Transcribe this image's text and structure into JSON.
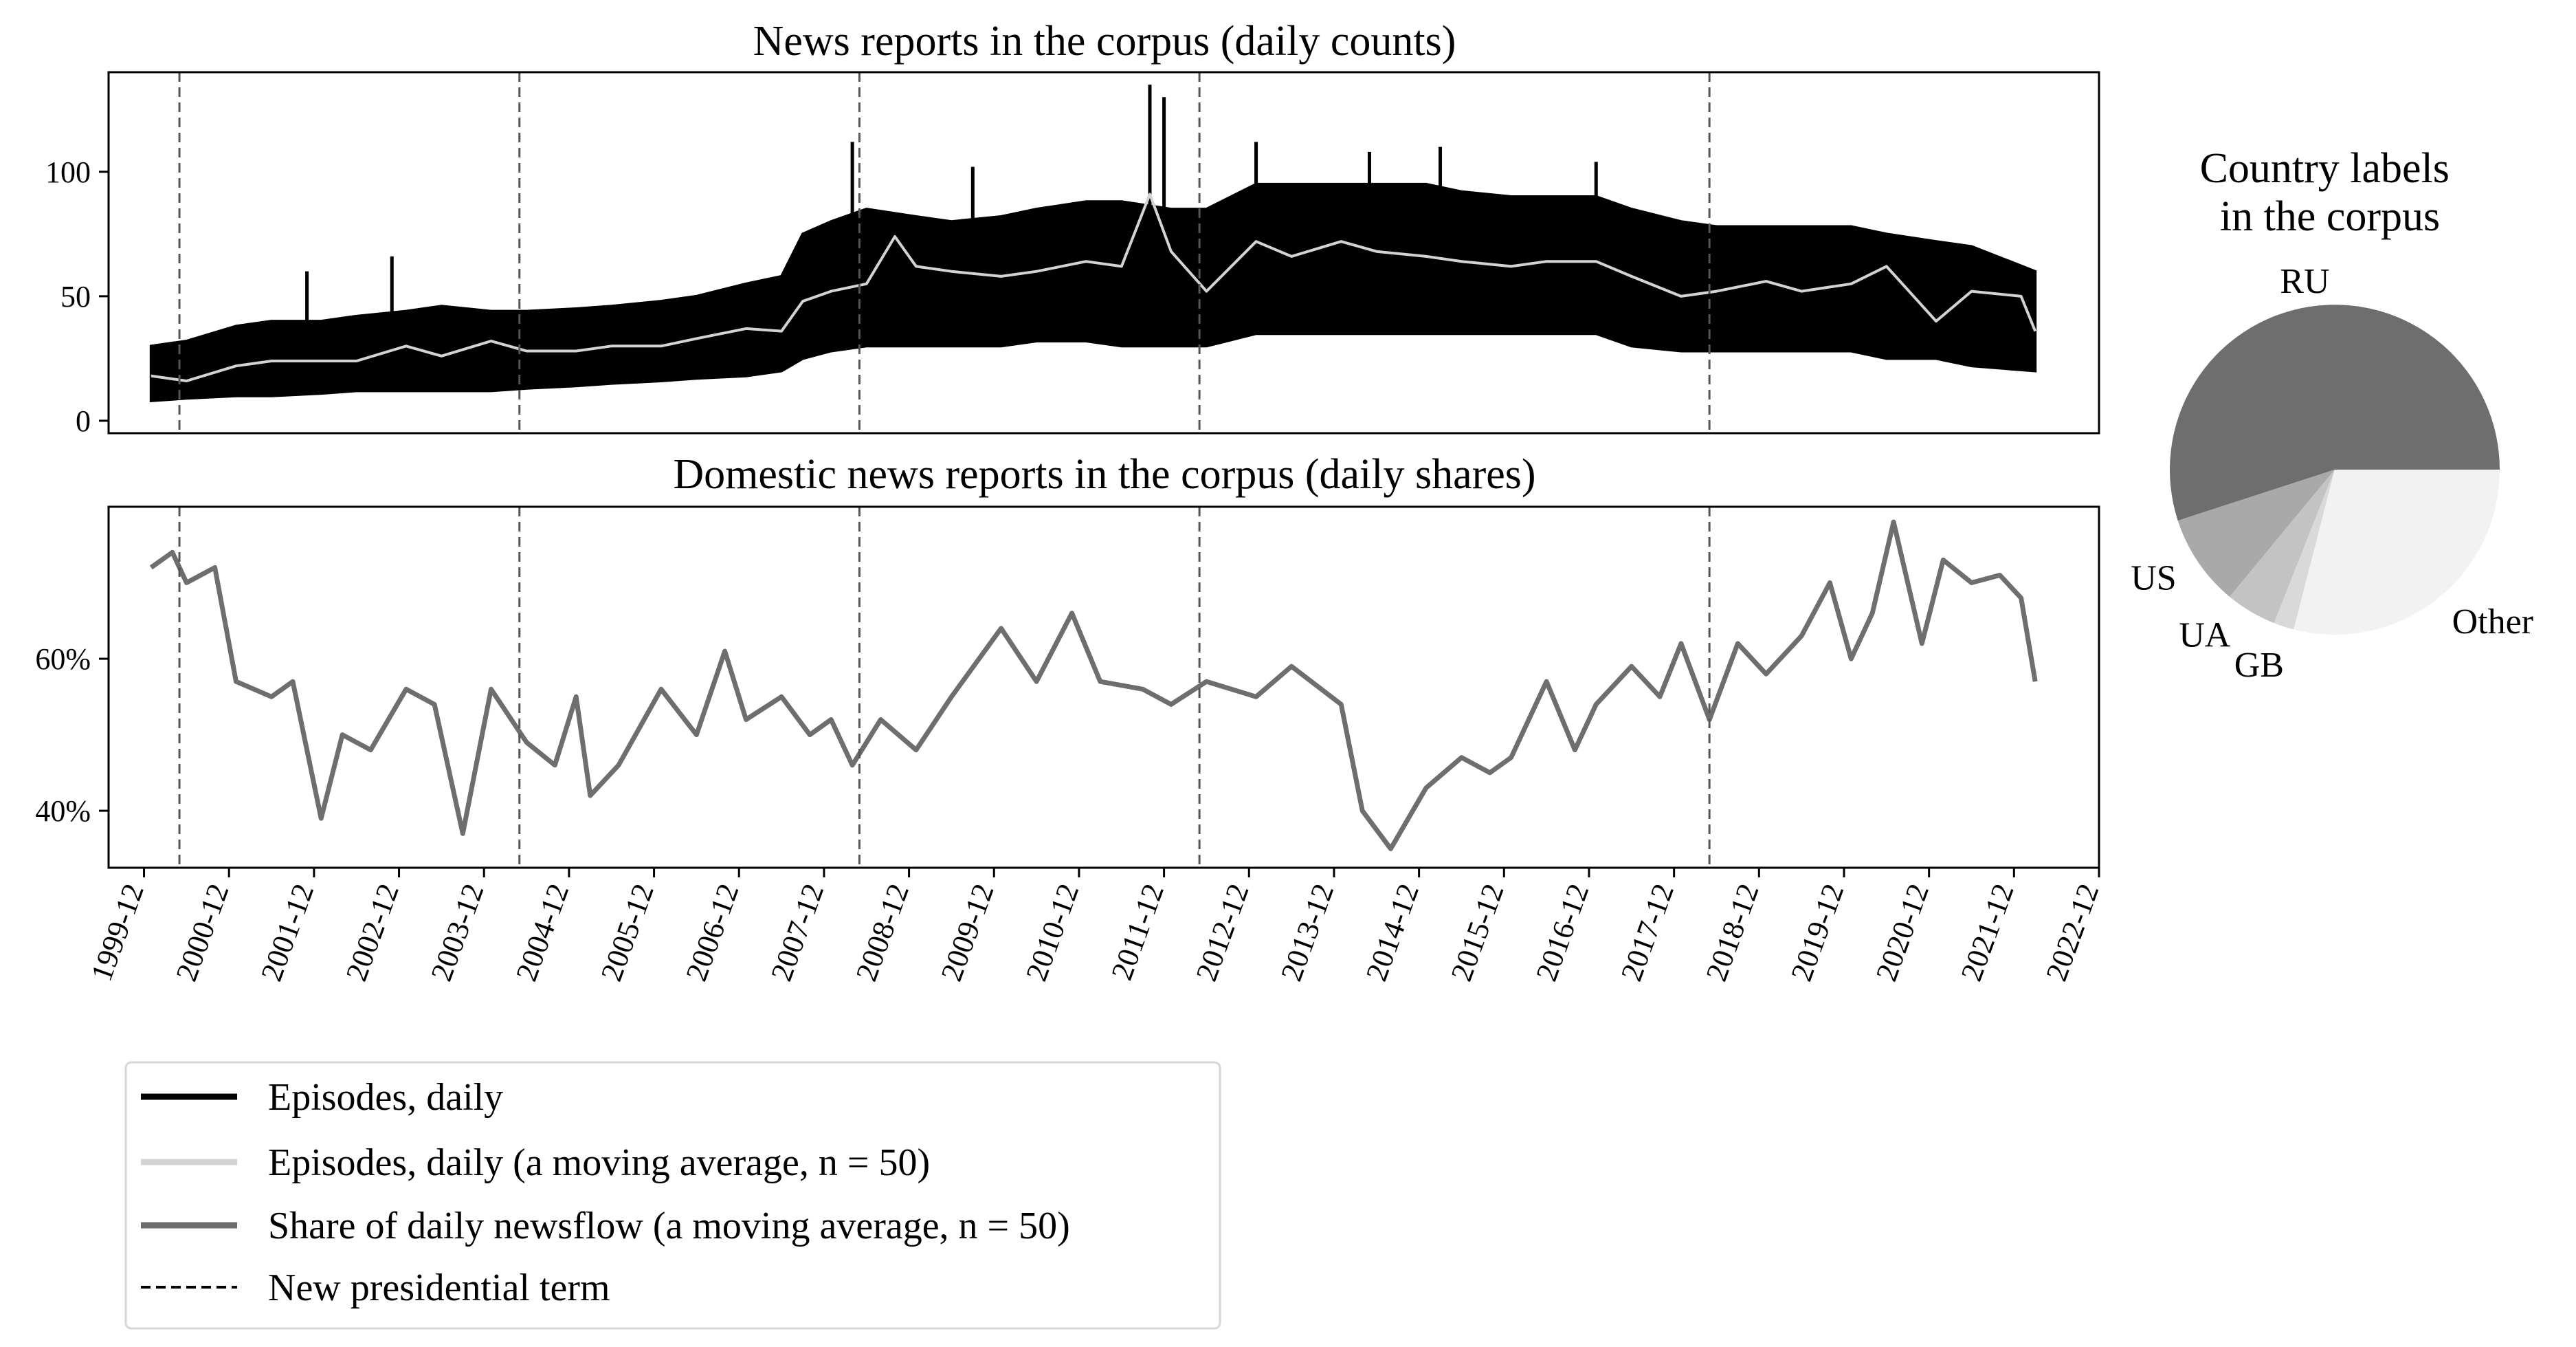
{
  "chart_data": [
    {
      "type": "line",
      "title": "News reports in the corpus (daily counts)",
      "xlabel": "",
      "ylabel": "",
      "x_range": [
        "1999-07",
        "2022-12"
      ],
      "ylim": [
        -5,
        140
      ],
      "yticks": [
        {
          "value": 0,
          "label": "0"
        },
        {
          "value": 50,
          "label": "50"
        },
        {
          "value": 100,
          "label": "100"
        }
      ],
      "series": [
        {
          "name": "Episodes, daily",
          "color": "#000000",
          "band": [
            {
              "x": "2000-01",
              "low": 8,
              "high": 30
            },
            {
              "x": "2000-06",
              "low": 9,
              "high": 32
            },
            {
              "x": "2001-01",
              "low": 10,
              "high": 38
            },
            {
              "x": "2001-06",
              "low": 10,
              "high": 40
            },
            {
              "x": "2002-01",
              "low": 11,
              "high": 40
            },
            {
              "x": "2002-06",
              "low": 12,
              "high": 42
            },
            {
              "x": "2003-01",
              "low": 12,
              "high": 44
            },
            {
              "x": "2003-06",
              "low": 12,
              "high": 46
            },
            {
              "x": "2004-01",
              "low": 12,
              "high": 44
            },
            {
              "x": "2004-06",
              "low": 13,
              "high": 44
            },
            {
              "x": "2005-01",
              "low": 14,
              "high": 45
            },
            {
              "x": "2005-06",
              "low": 15,
              "high": 46
            },
            {
              "x": "2006-01",
              "low": 16,
              "high": 48
            },
            {
              "x": "2006-06",
              "low": 17,
              "high": 50
            },
            {
              "x": "2007-01",
              "low": 18,
              "high": 55
            },
            {
              "x": "2007-06",
              "low": 20,
              "high": 58
            },
            {
              "x": "2007-09",
              "low": 25,
              "high": 75
            },
            {
              "x": "2008-01",
              "low": 28,
              "high": 80
            },
            {
              "x": "2008-06",
              "low": 30,
              "high": 85
            },
            {
              "x": "2009-01",
              "low": 30,
              "high": 82
            },
            {
              "x": "2009-06",
              "low": 30,
              "high": 80
            },
            {
              "x": "2010-01",
              "low": 30,
              "high": 82
            },
            {
              "x": "2010-06",
              "low": 32,
              "high": 85
            },
            {
              "x": "2011-01",
              "low": 32,
              "high": 88
            },
            {
              "x": "2011-06",
              "low": 30,
              "high": 88
            },
            {
              "x": "2012-01",
              "low": 30,
              "high": 85
            },
            {
              "x": "2012-06",
              "low": 30,
              "high": 85
            },
            {
              "x": "2013-01",
              "low": 35,
              "high": 95
            },
            {
              "x": "2013-06",
              "low": 35,
              "high": 95
            },
            {
              "x": "2014-01",
              "low": 35,
              "high": 95
            },
            {
              "x": "2014-06",
              "low": 35,
              "high": 95
            },
            {
              "x": "2015-01",
              "low": 35,
              "high": 95
            },
            {
              "x": "2015-06",
              "low": 35,
              "high": 92
            },
            {
              "x": "2016-01",
              "low": 35,
              "high": 90
            },
            {
              "x": "2016-06",
              "low": 35,
              "high": 90
            },
            {
              "x": "2017-01",
              "low": 35,
              "high": 90
            },
            {
              "x": "2017-06",
              "low": 30,
              "high": 85
            },
            {
              "x": "2018-01",
              "low": 28,
              "high": 80
            },
            {
              "x": "2018-06",
              "low": 28,
              "high": 78
            },
            {
              "x": "2019-01",
              "low": 28,
              "high": 78
            },
            {
              "x": "2019-06",
              "low": 28,
              "high": 78
            },
            {
              "x": "2020-01",
              "low": 28,
              "high": 78
            },
            {
              "x": "2020-06",
              "low": 25,
              "high": 75
            },
            {
              "x": "2021-01",
              "low": 25,
              "high": 72
            },
            {
              "x": "2021-06",
              "low": 22,
              "high": 70
            },
            {
              "x": "2022-03",
              "low": 20,
              "high": 60
            }
          ],
          "spikes": [
            {
              "x": "2001-11",
              "value": 60
            },
            {
              "x": "2002-11",
              "value": 66
            },
            {
              "x": "2008-04",
              "value": 112
            },
            {
              "x": "2009-09",
              "value": 102
            },
            {
              "x": "2011-10",
              "value": 135
            },
            {
              "x": "2011-12",
              "value": 130
            },
            {
              "x": "2013-01",
              "value": 112
            },
            {
              "x": "2014-05",
              "value": 108
            },
            {
              "x": "2015-03",
              "value": 110
            },
            {
              "x": "2017-01",
              "value": 104
            }
          ]
        },
        {
          "name": "Episodes, daily (a moving average, n = 50)",
          "color": "#d3d3d3",
          "points": [
            {
              "x": "2000-01",
              "y": 18
            },
            {
              "x": "2000-06",
              "y": 16
            },
            {
              "x": "2001-01",
              "y": 22
            },
            {
              "x": "2001-06",
              "y": 24
            },
            {
              "x": "2002-01",
              "y": 24
            },
            {
              "x": "2002-06",
              "y": 24
            },
            {
              "x": "2003-01",
              "y": 30
            },
            {
              "x": "2003-06",
              "y": 26
            },
            {
              "x": "2004-01",
              "y": 32
            },
            {
              "x": "2004-06",
              "y": 28
            },
            {
              "x": "2005-01",
              "y": 28
            },
            {
              "x": "2005-06",
              "y": 30
            },
            {
              "x": "2006-01",
              "y": 30
            },
            {
              "x": "2006-06",
              "y": 33
            },
            {
              "x": "2007-01",
              "y": 37
            },
            {
              "x": "2007-06",
              "y": 36
            },
            {
              "x": "2007-09",
              "y": 48
            },
            {
              "x": "2008-01",
              "y": 52
            },
            {
              "x": "2008-06",
              "y": 55
            },
            {
              "x": "2008-10",
              "y": 74
            },
            {
              "x": "2009-01",
              "y": 62
            },
            {
              "x": "2009-06",
              "y": 60
            },
            {
              "x": "2010-01",
              "y": 58
            },
            {
              "x": "2010-06",
              "y": 60
            },
            {
              "x": "2011-01",
              "y": 64
            },
            {
              "x": "2011-06",
              "y": 62
            },
            {
              "x": "2011-10",
              "y": 91
            },
            {
              "x": "2012-01",
              "y": 68
            },
            {
              "x": "2012-06",
              "y": 52
            },
            {
              "x": "2013-01",
              "y": 72
            },
            {
              "x": "2013-06",
              "y": 66
            },
            {
              "x": "2014-01",
              "y": 72
            },
            {
              "x": "2014-06",
              "y": 68
            },
            {
              "x": "2015-01",
              "y": 66
            },
            {
              "x": "2015-06",
              "y": 64
            },
            {
              "x": "2016-01",
              "y": 62
            },
            {
              "x": "2016-06",
              "y": 64
            },
            {
              "x": "2017-01",
              "y": 64
            },
            {
              "x": "2017-06",
              "y": 58
            },
            {
              "x": "2018-01",
              "y": 50
            },
            {
              "x": "2018-06",
              "y": 52
            },
            {
              "x": "2019-01",
              "y": 56
            },
            {
              "x": "2019-06",
              "y": 52
            },
            {
              "x": "2020-01",
              "y": 55
            },
            {
              "x": "2020-06",
              "y": 62
            },
            {
              "x": "2021-01",
              "y": 40
            },
            {
              "x": "2021-06",
              "y": 52
            },
            {
              "x": "2022-01",
              "y": 50
            },
            {
              "x": "2022-03",
              "y": 36
            }
          ]
        }
      ],
      "vlines": [
        "2000-05",
        "2004-05",
        "2008-05",
        "2012-05",
        "2018-05"
      ]
    },
    {
      "type": "line",
      "title": "Domestic news reports in the corpus (daily shares)",
      "xlabel": "",
      "ylabel": "",
      "x_range": [
        "1999-07",
        "2022-12"
      ],
      "ylim": [
        32.5,
        80
      ],
      "yticks": [
        {
          "value": 40,
          "label": "40%"
        },
        {
          "value": 60,
          "label": "60%"
        }
      ],
      "xticks": [
        "1999-12",
        "2000-12",
        "2001-12",
        "2002-12",
        "2003-12",
        "2004-12",
        "2005-12",
        "2006-12",
        "2007-12",
        "2008-12",
        "2009-12",
        "2010-12",
        "2011-12",
        "2012-12",
        "2013-12",
        "2014-12",
        "2015-12",
        "2016-12",
        "2017-12",
        "2018-12",
        "2019-12",
        "2020-12",
        "2021-12",
        "2022-12"
      ],
      "series": [
        {
          "name": "Share of daily newsflow (a moving average, n = 50)",
          "color": "#6e6e6e",
          "points": [
            {
              "x": "2000-01",
              "y": 72
            },
            {
              "x": "2000-04",
              "y": 74
            },
            {
              "x": "2000-06",
              "y": 70
            },
            {
              "x": "2000-10",
              "y": 72
            },
            {
              "x": "2001-01",
              "y": 57
            },
            {
              "x": "2001-06",
              "y": 55
            },
            {
              "x": "2001-09",
              "y": 57
            },
            {
              "x": "2002-01",
              "y": 39
            },
            {
              "x": "2002-04",
              "y": 50
            },
            {
              "x": "2002-08",
              "y": 48
            },
            {
              "x": "2003-01",
              "y": 56
            },
            {
              "x": "2003-05",
              "y": 54
            },
            {
              "x": "2003-09",
              "y": 37
            },
            {
              "x": "2004-01",
              "y": 56
            },
            {
              "x": "2004-06",
              "y": 49
            },
            {
              "x": "2004-10",
              "y": 46
            },
            {
              "x": "2005-01",
              "y": 55
            },
            {
              "x": "2005-03",
              "y": 42
            },
            {
              "x": "2005-07",
              "y": 46
            },
            {
              "x": "2006-01",
              "y": 56
            },
            {
              "x": "2006-06",
              "y": 50
            },
            {
              "x": "2006-10",
              "y": 61
            },
            {
              "x": "2007-01",
              "y": 52
            },
            {
              "x": "2007-06",
              "y": 55
            },
            {
              "x": "2007-10",
              "y": 50
            },
            {
              "x": "2008-01",
              "y": 52
            },
            {
              "x": "2008-04",
              "y": 46
            },
            {
              "x": "2008-08",
              "y": 52
            },
            {
              "x": "2009-01",
              "y": 48
            },
            {
              "x": "2009-06",
              "y": 55
            },
            {
              "x": "2010-01",
              "y": 64
            },
            {
              "x": "2010-06",
              "y": 57
            },
            {
              "x": "2010-11",
              "y": 66
            },
            {
              "x": "2011-03",
              "y": 57
            },
            {
              "x": "2011-09",
              "y": 56
            },
            {
              "x": "2012-01",
              "y": 54
            },
            {
              "x": "2012-06",
              "y": 57
            },
            {
              "x": "2013-01",
              "y": 55
            },
            {
              "x": "2013-06",
              "y": 59
            },
            {
              "x": "2014-01",
              "y": 54
            },
            {
              "x": "2014-04",
              "y": 40
            },
            {
              "x": "2014-08",
              "y": 35
            },
            {
              "x": "2015-01",
              "y": 43
            },
            {
              "x": "2015-06",
              "y": 47
            },
            {
              "x": "2015-10",
              "y": 45
            },
            {
              "x": "2016-01",
              "y": 47
            },
            {
              "x": "2016-06",
              "y": 57
            },
            {
              "x": "2016-10",
              "y": 48
            },
            {
              "x": "2017-01",
              "y": 54
            },
            {
              "x": "2017-06",
              "y": 59
            },
            {
              "x": "2017-10",
              "y": 55
            },
            {
              "x": "2018-01",
              "y": 62
            },
            {
              "x": "2018-05",
              "y": 52
            },
            {
              "x": "2018-09",
              "y": 62
            },
            {
              "x": "2019-01",
              "y": 58
            },
            {
              "x": "2019-06",
              "y": 63
            },
            {
              "x": "2019-10",
              "y": 70
            },
            {
              "x": "2020-01",
              "y": 60
            },
            {
              "x": "2020-04",
              "y": 66
            },
            {
              "x": "2020-07",
              "y": 78
            },
            {
              "x": "2020-11",
              "y": 62
            },
            {
              "x": "2021-02",
              "y": 73
            },
            {
              "x": "2021-06",
              "y": 70
            },
            {
              "x": "2021-10",
              "y": 71
            },
            {
              "x": "2022-01",
              "y": 68
            },
            {
              "x": "2022-03",
              "y": 57
            }
          ]
        }
      ],
      "vlines": [
        "2000-05",
        "2004-05",
        "2008-05",
        "2012-05",
        "2018-05"
      ]
    },
    {
      "type": "pie",
      "title": "Country labels\nin the corpus",
      "slices": [
        {
          "label": "RU",
          "value": 55,
          "color": "#6e6e6e"
        },
        {
          "label": "US",
          "value": 9,
          "color": "#a9a9a9"
        },
        {
          "label": "UA",
          "value": 5,
          "color": "#c3c3c3"
        },
        {
          "label": "GB",
          "value": 2,
          "color": "#d9d9d9"
        },
        {
          "label": "Other",
          "value": 29,
          "color": "#f2f2f2"
        }
      ]
    }
  ],
  "legend": {
    "placement": "bottom-left",
    "items": [
      {
        "label": "Episodes, daily",
        "color": "#000000",
        "style": "solid"
      },
      {
        "label": "Episodes, daily (a moving average, n = 50)",
        "color": "#d3d3d3",
        "style": "solid"
      },
      {
        "label": "Share of daily newsflow (a moving average, n = 50)",
        "color": "#6e6e6e",
        "style": "solid"
      },
      {
        "label": "New presidential term",
        "color": "#000000",
        "style": "dashed"
      }
    ]
  }
}
